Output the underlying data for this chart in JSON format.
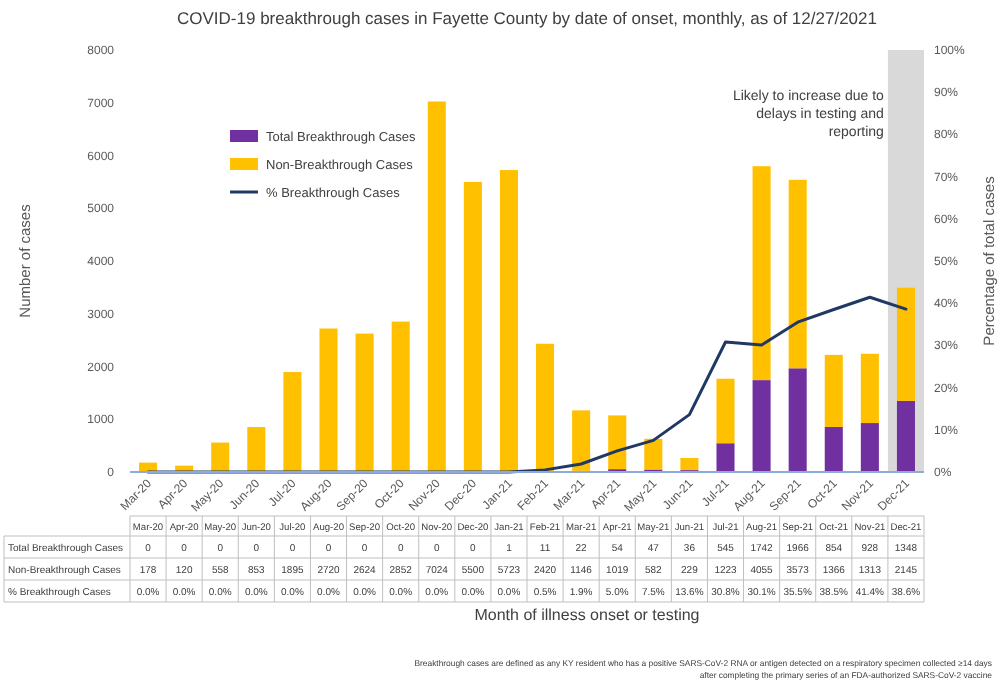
{
  "chart_data": {
    "type": "bar",
    "title": "COVID-19 breakthrough cases in Fayette County by date of onset, monthly, as of 12/27/2021",
    "ylabel": "Number of cases",
    "y2label": "Percentage of total cases",
    "categories": [
      "Mar-20",
      "Apr-20",
      "May-20",
      "Jun-20",
      "Jul-20",
      "Aug-20",
      "Sep-20",
      "Oct-20",
      "Nov-20",
      "Dec-20",
      "Jan-21",
      "Feb-21",
      "Mar-21",
      "Apr-21",
      "May-21",
      "Jun-21",
      "Jul-21",
      "Aug-21",
      "Sep-21",
      "Oct-21",
      "Nov-21",
      "Dec-21"
    ],
    "stacked": true,
    "series": [
      {
        "name": "Total Breakthrough Cases",
        "color": "#7030a0",
        "values": [
          0,
          0,
          0,
          0,
          0,
          0,
          0,
          0,
          0,
          0,
          1,
          11,
          22,
          54,
          47,
          36,
          545,
          1742,
          1966,
          854,
          928,
          1348
        ],
        "value_labels": [
          "0",
          "0",
          "0",
          "0",
          "0",
          "0",
          "0",
          "0",
          "0",
          "0",
          "1",
          "11",
          "22",
          "54",
          "47",
          "36",
          "545",
          "1742",
          "1966",
          "854",
          "928",
          "1348"
        ]
      },
      {
        "name": "Non-Breakthrough Cases",
        "color": "#ffc000",
        "values": [
          178,
          120,
          558,
          853,
          1895,
          2720,
          2624,
          2852,
          7024,
          5500,
          5723,
          2420,
          1146,
          1019,
          582,
          229,
          1223,
          4055,
          3573,
          1366,
          1313,
          2145
        ],
        "value_labels": [
          "178",
          "120",
          "558",
          "853",
          "1895",
          "2720",
          "2624",
          "2852",
          "7024",
          "5500",
          "5723",
          "2420",
          "1146",
          "1019",
          "582",
          "229",
          "1223",
          "4055",
          "3573",
          "1366",
          "1313",
          "2145"
        ]
      },
      {
        "name": "% Breakthrough Cases",
        "type": "line",
        "axis": "y2",
        "color": "#203864",
        "values": [
          0.0,
          0.0,
          0.0,
          0.0,
          0.0,
          0.0,
          0.0,
          0.0,
          0.0,
          0.0,
          0.0,
          0.5,
          1.9,
          5.0,
          7.5,
          13.6,
          30.8,
          30.1,
          35.5,
          38.5,
          41.4,
          38.6
        ],
        "value_labels": [
          "0.0%",
          "0.0%",
          "0.0%",
          "0.0%",
          "0.0%",
          "0.0%",
          "0.0%",
          "0.0%",
          "0.0%",
          "0.0%",
          "0.0%",
          "0.5%",
          "1.9%",
          "5.0%",
          "7.5%",
          "13.6%",
          "30.8%",
          "30.1%",
          "35.5%",
          "38.5%",
          "41.4%",
          "38.6%"
        ]
      }
    ],
    "ylim": [
      0,
      8000
    ],
    "yticks": [
      0,
      1000,
      2000,
      3000,
      4000,
      5000,
      6000,
      7000,
      8000
    ],
    "y2lim": [
      0,
      100
    ],
    "y2ticks": [
      {
        "value": 0,
        "label": "0%"
      },
      {
        "value": 10,
        "label": "10%"
      },
      {
        "value": 20,
        "label": "20%"
      },
      {
        "value": 30,
        "label": "30%"
      },
      {
        "value": 40,
        "label": "40%"
      },
      {
        "value": 50,
        "label": "50%"
      },
      {
        "value": 60,
        "label": "60%"
      },
      {
        "value": 70,
        "label": "70%"
      },
      {
        "value": 80,
        "label": "80%"
      },
      {
        "value": 90,
        "label": "90%"
      },
      {
        "value": 100,
        "label": "100%"
      }
    ],
    "bands": [
      {
        "axis": "x",
        "from": "Dec-21",
        "to": "Dec-21",
        "label": "Likely to increase due to delays in testing and reporting",
        "color": "#d9d9d9"
      }
    ],
    "legend": "top left",
    "grid": false,
    "marker": "none",
    "line_style": "solid",
    "annotations": [
      "Month of illness onset or testing",
      "Breakthrough cases are defined as any KY resident who has a positive SARS-CoV-2 RNA or antigen detected on a respiratory specimen collected ≥14 days after completing the primary series of an FDA-authorized SARS-CoV-2 vaccine"
    ]
  }
}
